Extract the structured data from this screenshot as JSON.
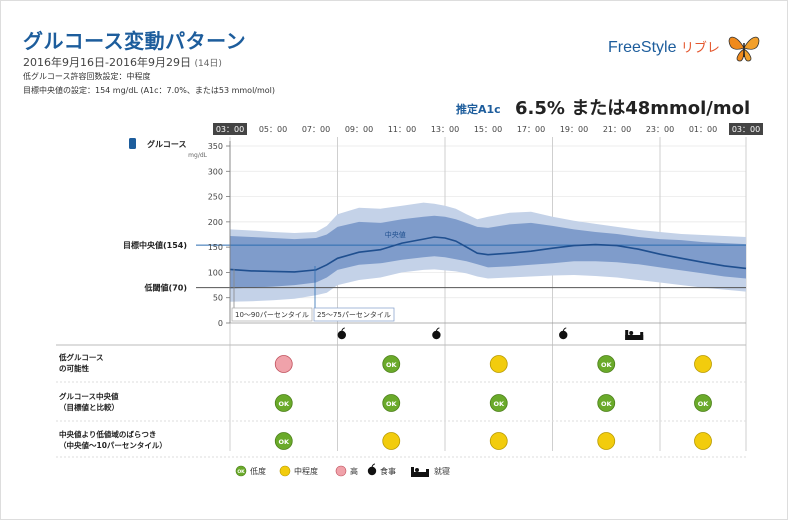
{
  "header": {
    "title": "グルコース変動パターン",
    "date_range": "2016年9月16日-2016年9月29日",
    "days": "(14日)",
    "low_setting": "低グルコース許容回数設定：中程度",
    "median_setting": "目標中央値の設定：154 mg/dL (A1c：7.0%、または53 mmol/mol)",
    "brand": "FreeStyle",
    "brand_kana": "リブレ",
    "a1c_label": "推定A1c",
    "a1c_value": "6.5% または48mmol/mol"
  },
  "legend": {
    "low": "低度",
    "medium": "中程度",
    "high": "高",
    "meal": "食事",
    "sleep": "就寝",
    "ok": "OK"
  },
  "colors": {
    "title": "#1d5d9c",
    "band_outer": "#c4d2e8",
    "band_inner": "#7f9ccb",
    "median_line": "#1f4f8f",
    "target_line": "#2b6cb0",
    "low_green": "#6aaa2a",
    "medium_yellow": "#f2cc0d",
    "high_red": "#f0a2aa"
  },
  "chart_data": {
    "type": "area",
    "title": "",
    "ylabel": "グルコース",
    "yunit": "mg/dL",
    "ylim": [
      0,
      350
    ],
    "yticks": [
      0,
      50,
      100,
      150,
      200,
      250,
      300,
      350
    ],
    "x_hours": [
      3,
      27
    ],
    "x_tick_labels": [
      "03：00",
      "05：00",
      "07：00",
      "09：00",
      "11：00",
      "13：00",
      "15：00",
      "17：00",
      "19：00",
      "21：00",
      "23：00",
      "01：00",
      "03：00"
    ],
    "target_median": {
      "label": "目標中央値(154)",
      "value": 154
    },
    "low_threshold": {
      "label": "低閾値(70)",
      "value": 70
    },
    "median_annotation": "中央値",
    "percentile_labels": [
      "10〜90パーセンタイル",
      "25〜75パーセンタイル"
    ],
    "x": [
      3,
      4,
      5,
      6,
      7,
      7.5,
      8,
      9,
      10,
      11,
      12,
      12.5,
      13,
      13.5,
      14,
      14.5,
      15,
      16,
      17,
      18,
      19,
      20,
      21,
      22,
      23,
      24,
      25,
      26,
      27
    ],
    "series": [
      {
        "name": "中央値",
        "values": [
          106,
          103,
          102,
          101,
          105,
          115,
          128,
          140,
          145,
          158,
          166,
          170,
          168,
          162,
          150,
          138,
          135,
          138,
          142,
          148,
          153,
          155,
          153,
          146,
          136,
          128,
          120,
          113,
          108
        ]
      },
      {
        "name": "p10",
        "values": [
          42,
          43,
          45,
          48,
          55,
          60,
          75,
          85,
          90,
          100,
          105,
          106,
          104,
          102,
          98,
          92,
          88,
          90,
          92,
          94,
          95,
          93,
          90,
          85,
          80,
          75,
          70,
          66,
          62
        ]
      },
      {
        "name": "p25",
        "values": [
          68,
          70,
          72,
          75,
          80,
          90,
          105,
          115,
          118,
          125,
          130,
          132,
          130,
          126,
          122,
          116,
          110,
          112,
          115,
          118,
          122,
          122,
          120,
          116,
          110,
          104,
          98,
          92,
          88
        ]
      },
      {
        "name": "p75",
        "values": [
          172,
          170,
          168,
          166,
          168,
          175,
          190,
          200,
          198,
          205,
          210,
          212,
          210,
          205,
          198,
          190,
          188,
          195,
          198,
          192,
          185,
          180,
          176,
          170,
          166,
          164,
          160,
          158,
          156
        ]
      },
      {
        "name": "p90",
        "values": [
          185,
          183,
          180,
          178,
          180,
          192,
          215,
          228,
          226,
          232,
          238,
          236,
          232,
          226,
          215,
          205,
          210,
          218,
          220,
          210,
          202,
          196,
          190,
          184,
          180,
          176,
          174,
          172,
          170
        ]
      }
    ],
    "meal_hours": [
      8.2,
      12.6,
      18.5
    ],
    "sleep_hour": 21.8,
    "rows": [
      {
        "label": [
          "低グルコース",
          "の可能性"
        ],
        "levels": [
          "high",
          "low",
          "medium",
          "low",
          "medium"
        ]
      },
      {
        "label": [
          "グルコース中央値",
          "（目標値と比較）"
        ],
        "levels": [
          "low",
          "low",
          "low",
          "low",
          "low"
        ]
      },
      {
        "label": [
          "中央値より低値域のばらつき",
          "（中央値〜10パーセンタイル）"
        ],
        "levels": [
          "low",
          "medium",
          "medium",
          "medium",
          "medium"
        ]
      }
    ]
  }
}
